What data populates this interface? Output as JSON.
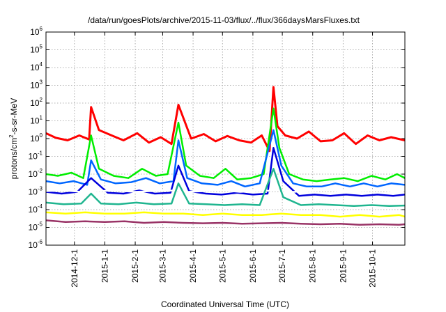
{
  "chart_data": {
    "type": "line",
    "title": "/data/run/goesPlots/archive/2015-11-03/flux/../flux/366daysMarsFluxes.txt",
    "xlabel": "Coordinated Universal Time (UTC)",
    "ylabel_base": "protons/cm",
    "ylabel_sup": "2",
    "ylabel_rest": "-s-sr-MeV",
    "y_scale": "log",
    "ylim": [
      1e-06,
      1000000.0
    ],
    "xlim": [
      "2014-11-02",
      "2015-11-03"
    ],
    "grid": true,
    "y_ticks": [
      {
        "value": 1e-06,
        "base": "10",
        "exp": "-6"
      },
      {
        "value": 1e-05,
        "base": "10",
        "exp": "-5"
      },
      {
        "value": 0.0001,
        "base": "10",
        "exp": "-4"
      },
      {
        "value": 0.001,
        "base": "10",
        "exp": "-3"
      },
      {
        "value": 0.01,
        "base": "10",
        "exp": "-2"
      },
      {
        "value": 0.1,
        "base": "10",
        "exp": "-1"
      },
      {
        "value": 1.0,
        "base": "10",
        "exp": "0"
      },
      {
        "value": 10.0,
        "base": "10",
        "exp": "1"
      },
      {
        "value": 100.0,
        "base": "10",
        "exp": "2"
      },
      {
        "value": 1000.0,
        "base": "10",
        "exp": "3"
      },
      {
        "value": 10000.0,
        "base": "10",
        "exp": "4"
      },
      {
        "value": 100000.0,
        "base": "10",
        "exp": "5"
      },
      {
        "value": 1000000.0,
        "base": "10",
        "exp": "6"
      }
    ],
    "x_ticks": [
      {
        "date": "2014-12-01",
        "label": "2014-12-1"
      },
      {
        "date": "2015-01-01",
        "label": "2015-1-1"
      },
      {
        "date": "2015-02-01",
        "label": "2015-2-1"
      },
      {
        "date": "2015-03-01",
        "label": "2015-3-1"
      },
      {
        "date": "2015-04-01",
        "label": "2015-4-1"
      },
      {
        "date": "2015-05-01",
        "label": "2015-5-1"
      },
      {
        "date": "2015-06-01",
        "label": "2015-6-1"
      },
      {
        "date": "2015-07-01",
        "label": "2015-7-1"
      },
      {
        "date": "2015-08-01",
        "label": "2015-8-1"
      },
      {
        "date": "2015-09-01",
        "label": "2015-9-1"
      },
      {
        "date": "2015-10-01",
        "label": "2015-10-1"
      }
    ],
    "series": [
      {
        "color": "#ff0000",
        "x": [
          "2014-11-02",
          "2014-11-12",
          "2014-11-24",
          "2014-12-06",
          "2014-12-16",
          "2014-12-18",
          "2014-12-26",
          "2015-01-08",
          "2015-01-20",
          "2015-02-03",
          "2015-02-15",
          "2015-02-27",
          "2015-03-10",
          "2015-03-17",
          "2015-03-30",
          "2015-04-12",
          "2015-04-24",
          "2015-05-06",
          "2015-05-18",
          "2015-05-30",
          "2015-06-10",
          "2015-06-18",
          "2015-06-22",
          "2015-06-26",
          "2015-07-04",
          "2015-07-16",
          "2015-07-28",
          "2015-08-09",
          "2015-08-21",
          "2015-09-02",
          "2015-09-14",
          "2015-09-26",
          "2015-10-08",
          "2015-10-20",
          "2015-11-03"
        ],
        "y": [
          2,
          1.1,
          0.8,
          1.5,
          0.9,
          60,
          3,
          1.5,
          0.8,
          2,
          0.6,
          1.2,
          0.5,
          80,
          1,
          1.8,
          0.7,
          1.4,
          0.8,
          0.6,
          1.5,
          0.2,
          800,
          5,
          1.5,
          1,
          2.5,
          0.7,
          0.8,
          2,
          0.5,
          1.5,
          0.8,
          1.2,
          0.8
        ]
      },
      {
        "color": "#00ee00",
        "x": [
          "2014-11-02",
          "2014-11-14",
          "2014-11-28",
          "2014-12-10",
          "2014-12-18",
          "2014-12-26",
          "2015-01-10",
          "2015-01-25",
          "2015-02-08",
          "2015-02-22",
          "2015-03-06",
          "2015-03-17",
          "2015-03-25",
          "2015-04-08",
          "2015-04-22",
          "2015-05-04",
          "2015-05-16",
          "2015-05-30",
          "2015-06-12",
          "2015-06-22",
          "2015-06-28",
          "2015-07-08",
          "2015-07-22",
          "2015-08-05",
          "2015-08-19",
          "2015-09-02",
          "2015-09-16",
          "2015-09-30",
          "2015-10-14",
          "2015-10-26",
          "2015-11-03"
        ],
        "y": [
          0.01,
          0.008,
          0.012,
          0.006,
          1.5,
          0.02,
          0.008,
          0.006,
          0.02,
          0.008,
          0.01,
          8,
          0.03,
          0.008,
          0.006,
          0.02,
          0.005,
          0.006,
          0.01,
          50,
          0.3,
          0.01,
          0.005,
          0.004,
          0.005,
          0.006,
          0.004,
          0.008,
          0.005,
          0.01,
          0.006
        ]
      },
      {
        "color": "#0066ff",
        "x": [
          "2014-11-02",
          "2014-11-16",
          "2014-11-30",
          "2014-12-14",
          "2014-12-18",
          "2014-12-28",
          "2015-01-12",
          "2015-01-28",
          "2015-02-12",
          "2015-02-26",
          "2015-03-12",
          "2015-03-17",
          "2015-03-26",
          "2015-04-10",
          "2015-04-26",
          "2015-05-10",
          "2015-05-24",
          "2015-06-08",
          "2015-06-22",
          "2015-06-30",
          "2015-07-12",
          "2015-07-26",
          "2015-08-10",
          "2015-08-24",
          "2015-09-08",
          "2015-09-22",
          "2015-10-06",
          "2015-10-20",
          "2015-11-03"
        ],
        "y": [
          0.004,
          0.003,
          0.004,
          0.0025,
          0.06,
          0.005,
          0.003,
          0.0035,
          0.006,
          0.003,
          0.004,
          0.8,
          0.006,
          0.003,
          0.0025,
          0.004,
          0.002,
          0.003,
          3,
          0.03,
          0.003,
          0.002,
          0.002,
          0.003,
          0.002,
          0.003,
          0.002,
          0.003,
          0.0025
        ]
      },
      {
        "color": "#0000dd",
        "x": [
          "2014-11-02",
          "2014-11-18",
          "2014-12-04",
          "2014-12-18",
          "2015-01-04",
          "2015-01-20",
          "2015-02-05",
          "2015-02-21",
          "2015-03-09",
          "2015-03-17",
          "2015-03-28",
          "2015-04-14",
          "2015-04-30",
          "2015-05-16",
          "2015-06-01",
          "2015-06-16",
          "2015-06-22",
          "2015-07-02",
          "2015-07-18",
          "2015-08-03",
          "2015-08-19",
          "2015-09-04",
          "2015-09-20",
          "2015-10-06",
          "2015-10-22",
          "2015-11-03"
        ],
        "y": [
          0.001,
          0.0008,
          0.001,
          0.006,
          0.0009,
          0.0008,
          0.0012,
          0.0008,
          0.0009,
          0.03,
          0.0011,
          0.0008,
          0.0007,
          0.0009,
          0.0007,
          0.0008,
          0.3,
          0.004,
          0.0006,
          0.0007,
          0.0006,
          0.0007,
          0.0006,
          0.0007,
          0.0006,
          0.0007
        ]
      },
      {
        "color": "#ffffff",
        "x": [
          "2014-11-02",
          "2014-11-20",
          "2014-12-08",
          "2014-12-26",
          "2015-01-13",
          "2015-01-31",
          "2015-02-18",
          "2015-03-08",
          "2015-03-26",
          "2015-04-13",
          "2015-05-01",
          "2015-05-19",
          "2015-06-06",
          "2015-06-24",
          "2015-07-12",
          "2015-07-30",
          "2015-08-17",
          "2015-09-04",
          "2015-09-22",
          "2015-10-10",
          "2015-10-28",
          "2015-11-03"
        ],
        "y": [
          0.0011,
          0.0012,
          0.001,
          0.0011,
          0.0012,
          0.001,
          0.0011,
          0.0012,
          0.001,
          0.0011,
          0.0012,
          0.001,
          0.0011,
          0.0012,
          0.001,
          0.0011,
          0.0012,
          0.001,
          0.0011,
          0.0012,
          0.001,
          0.0011
        ]
      },
      {
        "color": "#1fb58f",
        "x": [
          "2014-11-02",
          "2014-11-20",
          "2014-12-08",
          "2014-12-18",
          "2014-12-28",
          "2015-01-15",
          "2015-02-02",
          "2015-02-20",
          "2015-03-10",
          "2015-03-17",
          "2015-03-28",
          "2015-04-15",
          "2015-05-03",
          "2015-05-21",
          "2015-06-08",
          "2015-06-22",
          "2015-07-02",
          "2015-07-20",
          "2015-08-07",
          "2015-08-25",
          "2015-09-12",
          "2015-09-30",
          "2015-10-18",
          "2015-11-03"
        ],
        "y": [
          0.00025,
          0.0002,
          0.00022,
          0.0008,
          0.00022,
          0.0002,
          0.00025,
          0.0002,
          0.00022,
          0.003,
          0.00022,
          0.0002,
          0.00018,
          0.0002,
          0.00018,
          0.02,
          0.0005,
          0.00018,
          0.0002,
          0.00018,
          0.00016,
          0.00018,
          0.00016,
          0.00017
        ]
      },
      {
        "color": "#ffff00",
        "x": [
          "2014-11-02",
          "2014-11-22",
          "2014-12-12",
          "2015-01-01",
          "2015-01-21",
          "2015-02-10",
          "2015-03-02",
          "2015-03-22",
          "2015-04-11",
          "2015-05-01",
          "2015-05-21",
          "2015-06-10",
          "2015-06-30",
          "2015-07-20",
          "2015-08-09",
          "2015-08-29",
          "2015-09-18",
          "2015-10-08",
          "2015-10-28",
          "2015-11-03"
        ],
        "y": [
          7e-05,
          6e-05,
          7e-05,
          6e-05,
          6e-05,
          7e-05,
          6e-05,
          6e-05,
          5e-05,
          6e-05,
          5e-05,
          5e-05,
          6e-05,
          5e-05,
          5e-05,
          4e-05,
          5e-05,
          4e-05,
          5e-05,
          4e-05
        ]
      },
      {
        "color": "#993366",
        "x": [
          "2014-11-02",
          "2014-11-22",
          "2014-12-12",
          "2015-01-01",
          "2015-01-21",
          "2015-02-10",
          "2015-03-02",
          "2015-03-22",
          "2015-04-11",
          "2015-05-01",
          "2015-05-21",
          "2015-06-10",
          "2015-06-30",
          "2015-07-20",
          "2015-08-09",
          "2015-08-29",
          "2015-09-18",
          "2015-10-08",
          "2015-10-28",
          "2015-11-03"
        ],
        "y": [
          2.5e-05,
          2e-05,
          2.2e-05,
          2e-05,
          2.2e-05,
          1.8e-05,
          2e-05,
          1.8e-05,
          1.7e-05,
          1.8e-05,
          1.6e-05,
          1.7e-05,
          1.8e-05,
          1.6e-05,
          1.5e-05,
          1.6e-05,
          1.4e-05,
          1.5e-05,
          1.4e-05,
          1.5e-05
        ]
      }
    ]
  }
}
